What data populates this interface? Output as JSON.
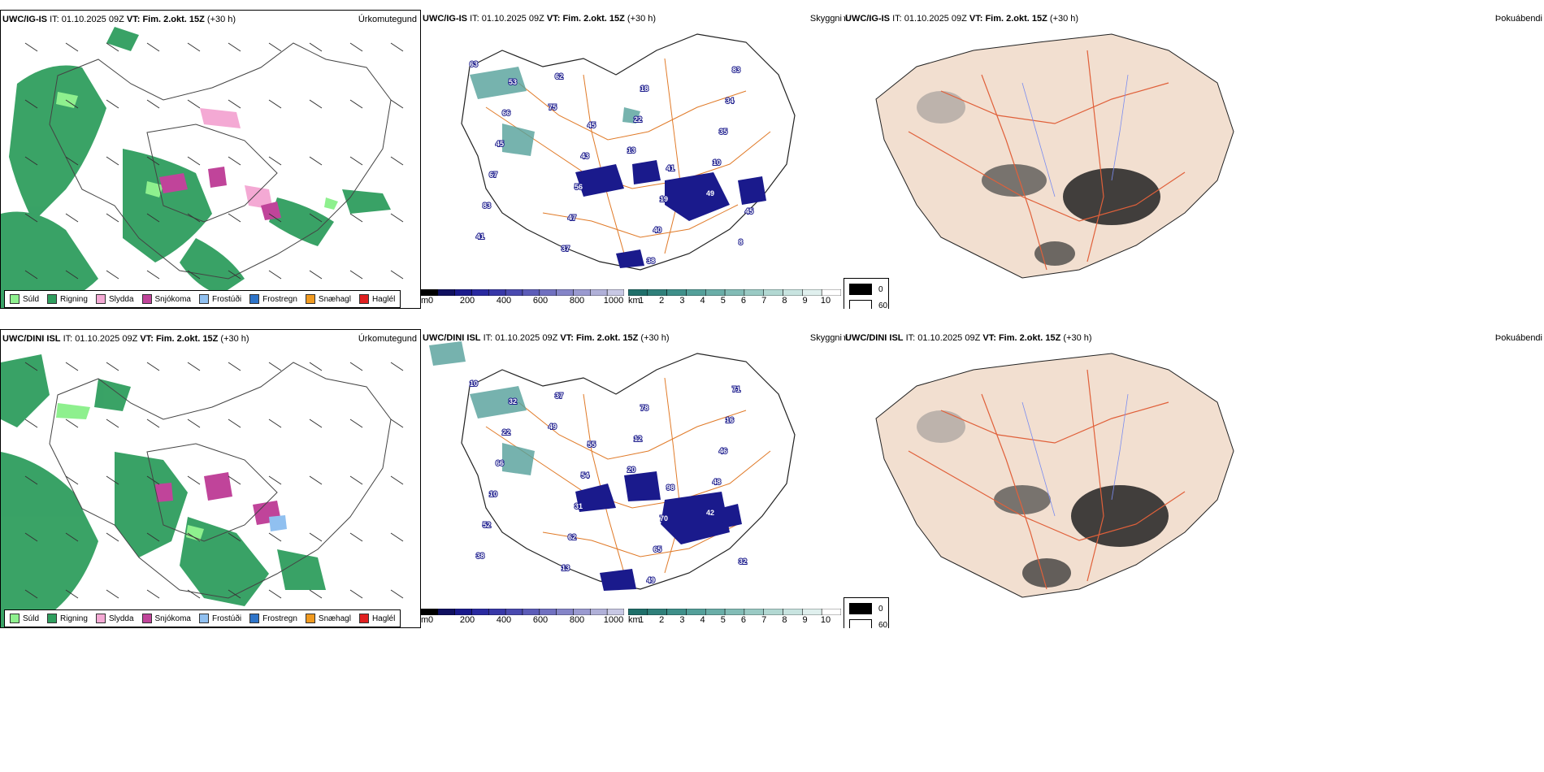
{
  "rows": [
    {
      "model": "UWC/IG-IS",
      "precip_title": "Úrkomutegund",
      "mid_title": "",
      "cloud_title": "Skyggni",
      "fog_title": "Þokuábendi",
      "cloud_labels": [
        "63",
        "75",
        "13",
        "49",
        "41",
        "62",
        "22",
        "10",
        "83",
        "37",
        "18",
        "35",
        "67",
        "47",
        "38",
        "34",
        "45",
        "56",
        "40",
        "83",
        "66",
        "43",
        "19",
        "8",
        "53",
        "45",
        "41",
        "45"
      ]
    },
    {
      "model": "UWC/DINI ISL",
      "precip_title": "Úrkomutegund",
      "mid_title": "",
      "cloud_title": "Skyggni",
      "fog_title": "Þokuábendi",
      "cloud_labels": [
        "10",
        "49",
        "20",
        "42",
        "38",
        "37",
        "12",
        "48",
        "52",
        "13",
        "78",
        "46",
        "10",
        "62",
        "49",
        "16",
        "66",
        "31",
        "65",
        "71",
        "22",
        "54",
        "70",
        "32",
        "32",
        "55",
        "98"
      ]
    }
  ],
  "timestamp": {
    "it_label": "IT:",
    "it_value": "01.10.2025 09Z",
    "vt_label": "VT: Fim. 2.okt. 15Z",
    "offset": "(+30 h)"
  },
  "precip_legend": [
    {
      "label": "Súld",
      "color": "#8ef08e"
    },
    {
      "label": "Rigning",
      "color": "#2f9e5e"
    },
    {
      "label": "Slydda",
      "color": "#f4a9d4"
    },
    {
      "label": "Snjókoma",
      "color": "#c0449a"
    },
    {
      "label": "Frostúði",
      "color": "#90c0f0"
    },
    {
      "label": "Frostregn",
      "color": "#2e74c8"
    },
    {
      "label": "Snæhagl",
      "color": "#f09a20"
    },
    {
      "label": "Haglél",
      "color": "#e02020"
    }
  ],
  "cloud_base_bar": {
    "unit": "m",
    "ticks": [
      "0",
      "200",
      "400",
      "600",
      "800",
      "1000"
    ],
    "colors": [
      "#000000",
      "#101060",
      "#1a1a8c",
      "#2a2aa0",
      "#3838a8",
      "#4a4ab0",
      "#5c5cb8",
      "#7070c0",
      "#8585c8",
      "#9a9ad0",
      "#b0b0d8",
      "#c8c8e4"
    ]
  },
  "visibility_bar": {
    "unit": "km",
    "ticks": [
      "1",
      "2",
      "3",
      "4",
      "5",
      "6",
      "7",
      "8",
      "9",
      "10"
    ],
    "colors": [
      "#1f6f6a",
      "#2f807a",
      "#3f908a",
      "#54a09a",
      "#6aaea8",
      "#82bcb6",
      "#9acac4",
      "#b2d8d2",
      "#c8e4e0",
      "#e0f0ee",
      "#ffffff"
    ]
  },
  "fog_legend": {
    "entries": [
      {
        "label": "0",
        "color": "#000000"
      },
      {
        "label": "60",
        "color": "#ffffff"
      }
    ]
  }
}
